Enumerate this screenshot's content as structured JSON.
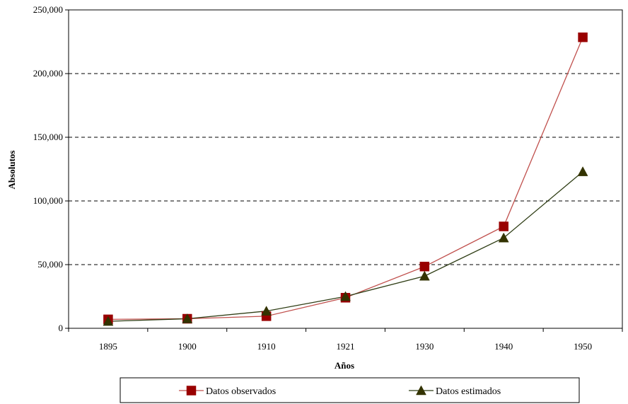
{
  "chart_data": {
    "type": "line",
    "title": "",
    "xlabel": "Años",
    "ylabel": "Absolutos",
    "categories": [
      "1895",
      "1900",
      "1910",
      "1921",
      "1930",
      "1940",
      "1950"
    ],
    "ylim": [
      0,
      250000
    ],
    "yticks": [
      0,
      50000,
      100000,
      150000,
      200000,
      250000
    ],
    "ytick_labels": [
      "0",
      "50,000",
      "100,000",
      "150,000",
      "200,000",
      "250,000"
    ],
    "grid": "horizontal dashed",
    "legend_position": "bottom",
    "series": [
      {
        "name": "Datos observados",
        "values": [
          7000,
          7500,
          9500,
          24000,
          48500,
          80000,
          228500
        ],
        "color": "#c0504d",
        "marker": "square",
        "marker_color": "#990000"
      },
      {
        "name": "Datos estimados",
        "values": [
          5500,
          7500,
          13500,
          25000,
          41000,
          71000,
          123000
        ],
        "color": "#2e3d14",
        "marker": "triangle",
        "marker_color": "#333300"
      }
    ]
  }
}
